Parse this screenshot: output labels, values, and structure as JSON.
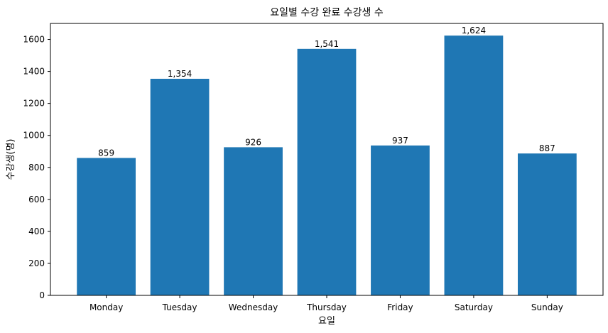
{
  "chart_data": {
    "type": "bar",
    "title": "요일별 수강 완료 수강생 수",
    "xlabel": "요일",
    "ylabel": "수강생(명)",
    "categories": [
      "Monday",
      "Tuesday",
      "Wednesday",
      "Thursday",
      "Friday",
      "Saturday",
      "Sunday"
    ],
    "values": [
      859,
      1354,
      926,
      1541,
      937,
      1624,
      887
    ],
    "value_labels": [
      "859",
      "1,354",
      "926",
      "1,541",
      "937",
      "1,624",
      "887"
    ],
    "ylim": [
      0,
      1700
    ],
    "yticks": [
      0,
      200,
      400,
      600,
      800,
      1000,
      1200,
      1400,
      1600
    ],
    "ytick_labels": [
      "0",
      "200",
      "400",
      "600",
      "800",
      "1000",
      "1200",
      "1400",
      "1600"
    ],
    "grid": false,
    "bar_color": "#1f77b4"
  }
}
